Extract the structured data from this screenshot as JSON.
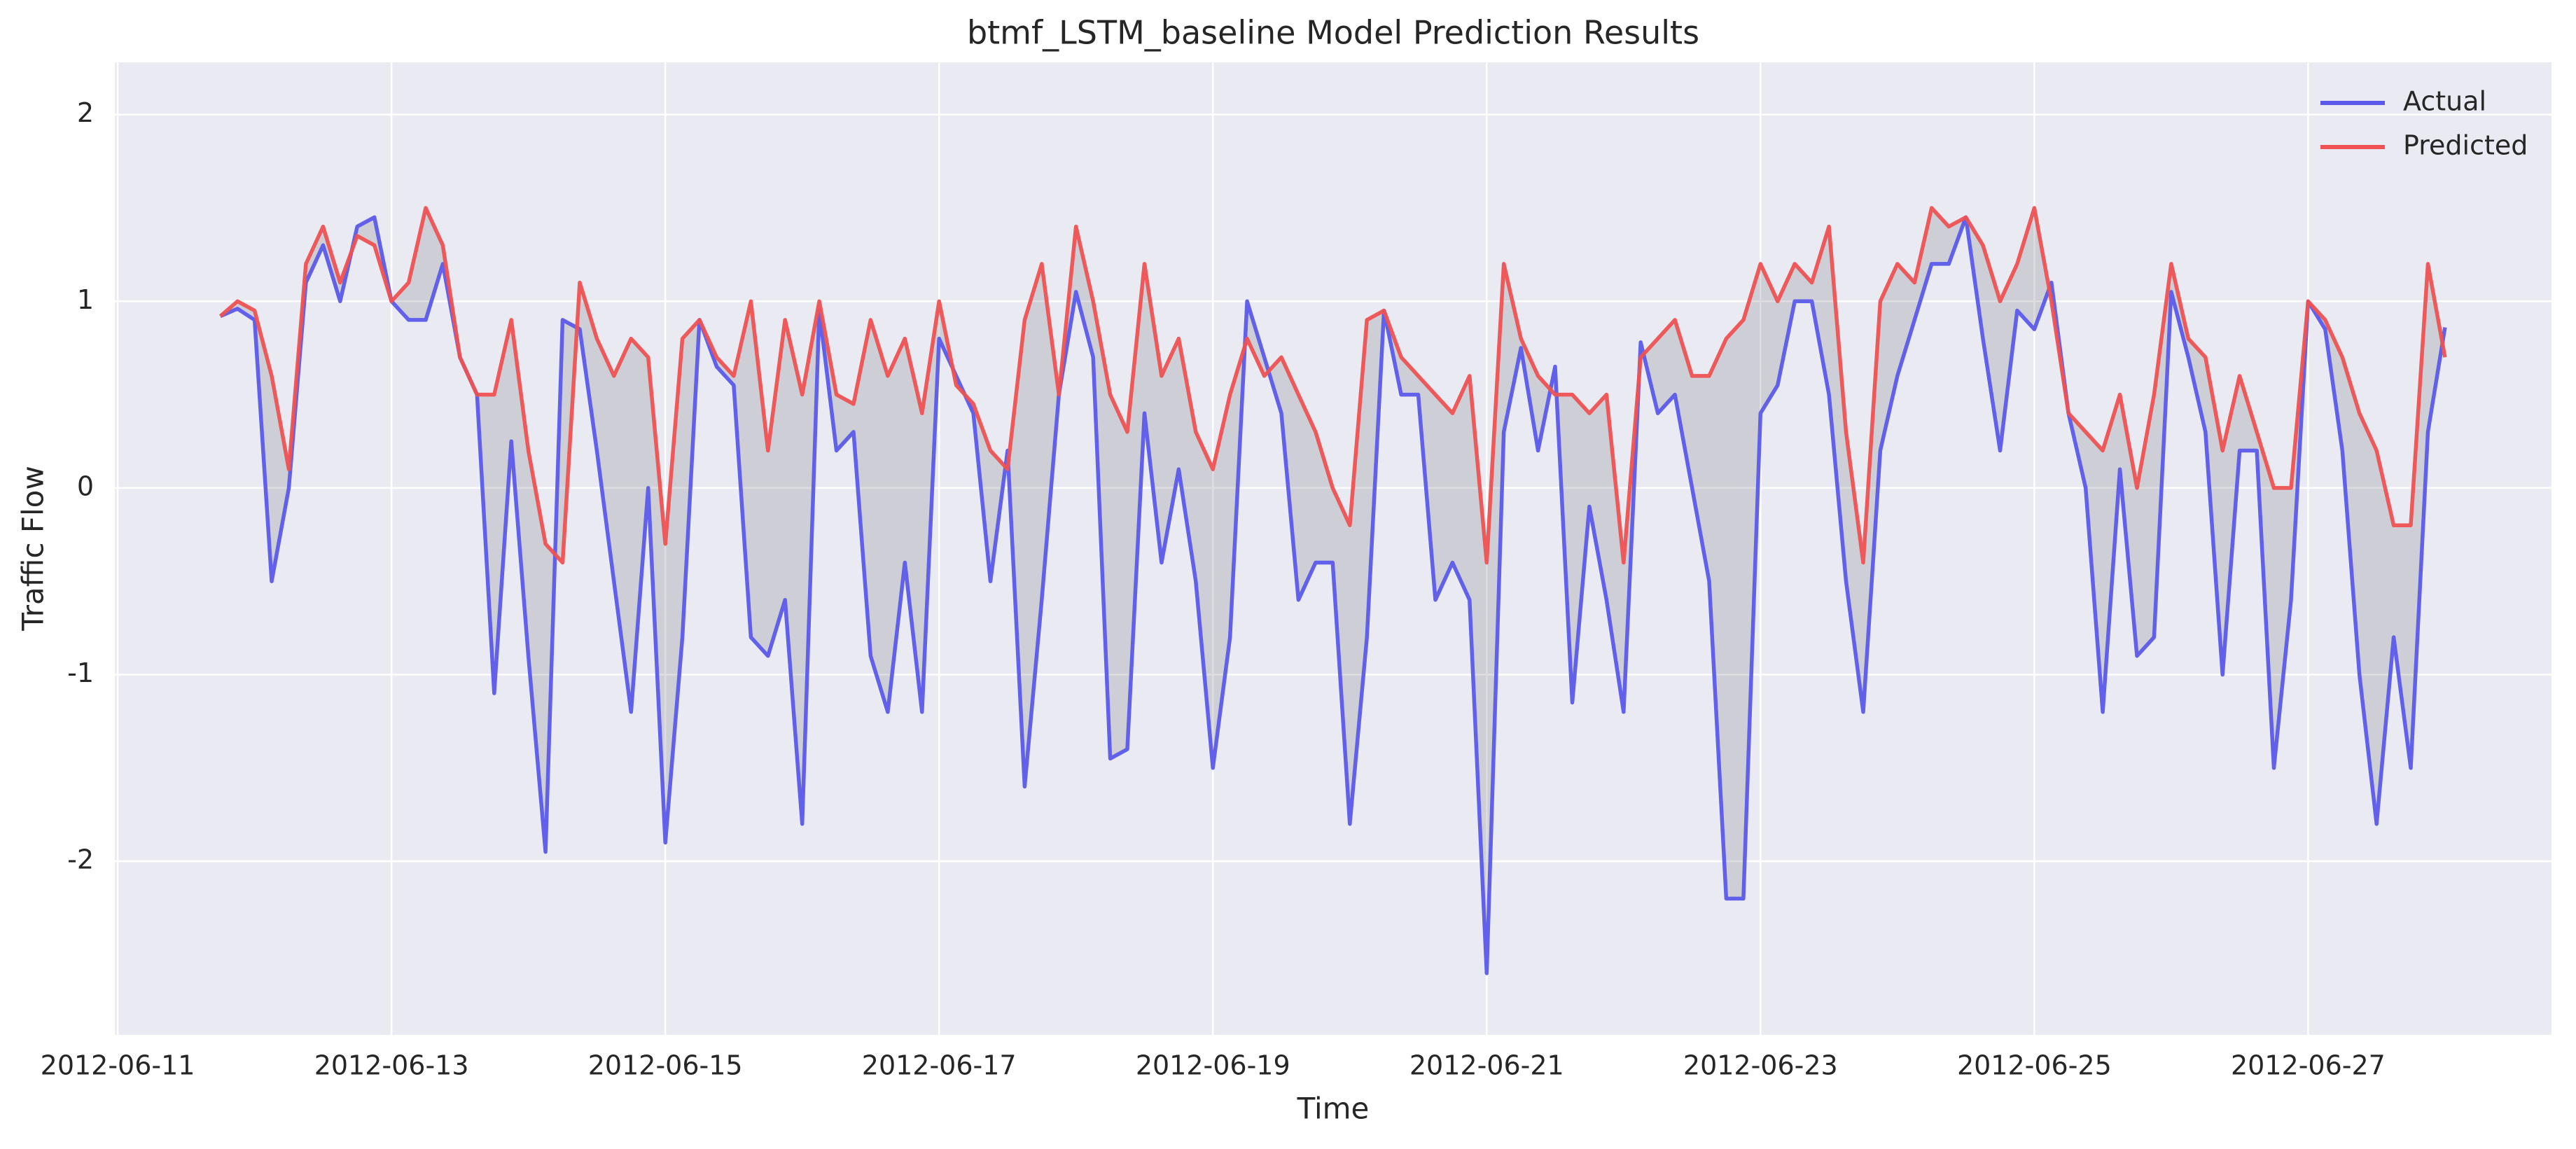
{
  "chart_data": {
    "type": "line",
    "title": "btmf_LSTM_baseline Model Prediction Results",
    "x_label": "Time",
    "y_label": "Traffic Flow",
    "grid": true,
    "legend": "upper right",
    "fill_between": true,
    "fill_color": "#8f8f99",
    "background": "#eaeaf2",
    "xlim": [
      "2012-06-10 23:30",
      "2012-06-28 18:40"
    ],
    "xticks": [
      "2012-06-11",
      "2012-06-13",
      "2012-06-15",
      "2012-06-17",
      "2012-06-19",
      "2012-06-21",
      "2012-06-23",
      "2012-06-25",
      "2012-06-27"
    ],
    "ylim": [
      -2.93,
      2.28
    ],
    "yticks": [
      -2,
      -1,
      0,
      1,
      2
    ],
    "x": [
      "2012-06-11 18:00",
      "2012-06-11 21:00",
      "2012-06-12 00:00",
      "2012-06-12 03:00",
      "2012-06-12 06:00",
      "2012-06-12 09:00",
      "2012-06-12 12:00",
      "2012-06-12 15:00",
      "2012-06-12 18:00",
      "2012-06-12 21:00",
      "2012-06-13 00:00",
      "2012-06-13 03:00",
      "2012-06-13 06:00",
      "2012-06-13 09:00",
      "2012-06-13 12:00",
      "2012-06-13 15:00",
      "2012-06-13 18:00",
      "2012-06-13 21:00",
      "2012-06-14 00:00",
      "2012-06-14 03:00",
      "2012-06-14 06:00",
      "2012-06-14 09:00",
      "2012-06-14 12:00",
      "2012-06-14 15:00",
      "2012-06-14 18:00",
      "2012-06-14 21:00",
      "2012-06-15 00:00",
      "2012-06-15 03:00",
      "2012-06-15 06:00",
      "2012-06-15 09:00",
      "2012-06-15 12:00",
      "2012-06-15 15:00",
      "2012-06-15 18:00",
      "2012-06-15 21:00",
      "2012-06-16 00:00",
      "2012-06-16 03:00",
      "2012-06-16 06:00",
      "2012-06-16 09:00",
      "2012-06-16 12:00",
      "2012-06-16 15:00",
      "2012-06-16 18:00",
      "2012-06-16 21:00",
      "2012-06-17 00:00",
      "2012-06-17 03:00",
      "2012-06-17 06:00",
      "2012-06-17 09:00",
      "2012-06-17 12:00",
      "2012-06-17 15:00",
      "2012-06-17 18:00",
      "2012-06-17 21:00",
      "2012-06-18 00:00",
      "2012-06-18 03:00",
      "2012-06-18 06:00",
      "2012-06-18 09:00",
      "2012-06-18 12:00",
      "2012-06-18 15:00",
      "2012-06-18 18:00",
      "2012-06-18 21:00",
      "2012-06-19 00:00",
      "2012-06-19 03:00",
      "2012-06-19 06:00",
      "2012-06-19 09:00",
      "2012-06-19 12:00",
      "2012-06-19 15:00",
      "2012-06-19 18:00",
      "2012-06-19 21:00",
      "2012-06-20 00:00",
      "2012-06-20 03:00",
      "2012-06-20 06:00",
      "2012-06-20 09:00",
      "2012-06-20 12:00",
      "2012-06-20 15:00",
      "2012-06-20 18:00",
      "2012-06-20 21:00",
      "2012-06-21 00:00",
      "2012-06-21 03:00",
      "2012-06-21 06:00",
      "2012-06-21 09:00",
      "2012-06-21 12:00",
      "2012-06-21 15:00",
      "2012-06-21 18:00",
      "2012-06-21 21:00",
      "2012-06-22 00:00",
      "2012-06-22 03:00",
      "2012-06-22 06:00",
      "2012-06-22 09:00",
      "2012-06-22 12:00",
      "2012-06-22 15:00",
      "2012-06-22 18:00",
      "2012-06-22 21:00",
      "2012-06-23 00:00",
      "2012-06-23 03:00",
      "2012-06-23 06:00",
      "2012-06-23 09:00",
      "2012-06-23 12:00",
      "2012-06-23 15:00",
      "2012-06-23 18:00",
      "2012-06-23 21:00",
      "2012-06-24 00:00",
      "2012-06-24 03:00",
      "2012-06-24 06:00",
      "2012-06-24 09:00",
      "2012-06-24 12:00",
      "2012-06-24 15:00",
      "2012-06-24 18:00",
      "2012-06-24 21:00",
      "2012-06-25 00:00",
      "2012-06-25 03:00",
      "2012-06-25 06:00",
      "2012-06-25 09:00",
      "2012-06-25 12:00",
      "2012-06-25 15:00",
      "2012-06-25 18:00",
      "2012-06-25 21:00",
      "2012-06-26 00:00",
      "2012-06-26 03:00",
      "2012-06-26 06:00",
      "2012-06-26 09:00",
      "2012-06-26 12:00",
      "2012-06-26 15:00",
      "2012-06-26 18:00",
      "2012-06-26 21:00",
      "2012-06-27 00:00",
      "2012-06-27 03:00",
      "2012-06-27 06:00",
      "2012-06-27 09:00",
      "2012-06-27 12:00",
      "2012-06-27 15:00",
      "2012-06-27 18:00",
      "2012-06-27 21:00",
      "2012-06-28 00:00"
    ],
    "series": [
      {
        "name": "Actual",
        "color": "#5a5aea",
        "values": [
          0.92,
          0.96,
          0.9,
          -0.5,
          0.0,
          1.1,
          1.3,
          1.0,
          1.4,
          1.45,
          1.0,
          0.9,
          0.9,
          1.2,
          0.7,
          0.5,
          -1.1,
          0.25,
          -0.9,
          -1.95,
          0.9,
          0.85,
          0.2,
          -0.5,
          -1.2,
          0.0,
          -1.9,
          -0.8,
          0.9,
          0.65,
          0.55,
          -0.8,
          -0.9,
          -0.6,
          -1.8,
          0.95,
          0.2,
          0.3,
          -0.9,
          -1.2,
          -0.4,
          -1.2,
          0.8,
          0.6,
          0.4,
          -0.5,
          0.2,
          -1.6,
          -0.6,
          0.5,
          1.05,
          0.7,
          -1.45,
          -1.4,
          0.4,
          -0.4,
          0.1,
          -0.5,
          -1.5,
          -0.8,
          1.0,
          0.7,
          0.4,
          -0.6,
          -0.4,
          -0.4,
          -1.8,
          -0.8,
          0.95,
          0.5,
          0.5,
          -0.6,
          -0.4,
          -0.6,
          -2.6,
          0.3,
          0.75,
          0.2,
          0.65,
          -1.15,
          -0.1,
          -0.6,
          -1.2,
          0.78,
          0.4,
          0.5,
          0.0,
          -0.5,
          -2.2,
          -2.2,
          0.4,
          0.55,
          1.0,
          1.0,
          0.5,
          -0.5,
          -1.2,
          0.2,
          0.6,
          0.9,
          1.2,
          1.2,
          1.45,
          0.8,
          0.2,
          0.95,
          0.85,
          1.1,
          0.4,
          0.0,
          -1.2,
          0.1,
          -0.9,
          -0.8,
          1.05,
          0.7,
          0.3,
          -1.0,
          0.2,
          0.2,
          -1.5,
          -0.6,
          1.0,
          0.85,
          0.2,
          -1.0,
          -1.8,
          -0.8,
          -1.5,
          0.3,
          0.86
        ]
      },
      {
        "name": "Predicted",
        "color": "#ee5252",
        "values": [
          0.92,
          1.0,
          0.95,
          0.6,
          0.1,
          1.2,
          1.4,
          1.1,
          1.35,
          1.3,
          1.0,
          1.1,
          1.5,
          1.3,
          0.7,
          0.5,
          0.5,
          0.9,
          0.2,
          -0.3,
          -0.4,
          1.1,
          0.8,
          0.6,
          0.8,
          0.7,
          -0.3,
          0.8,
          0.9,
          0.7,
          0.6,
          1.0,
          0.2,
          0.9,
          0.5,
          1.0,
          0.5,
          0.45,
          0.9,
          0.6,
          0.8,
          0.4,
          1.0,
          0.55,
          0.45,
          0.2,
          0.1,
          0.9,
          1.2,
          0.5,
          1.4,
          1.0,
          0.5,
          0.3,
          1.2,
          0.6,
          0.8,
          0.3,
          0.1,
          0.5,
          0.8,
          0.6,
          0.7,
          0.5,
          0.3,
          0.0,
          -0.2,
          0.9,
          0.95,
          0.7,
          0.6,
          0.5,
          0.4,
          0.6,
          -0.4,
          1.2,
          0.8,
          0.6,
          0.5,
          0.5,
          0.4,
          0.5,
          -0.4,
          0.7,
          0.8,
          0.9,
          0.6,
          0.6,
          0.8,
          0.9,
          1.2,
          1.0,
          1.2,
          1.1,
          1.4,
          0.3,
          -0.4,
          1.0,
          1.2,
          1.1,
          1.5,
          1.4,
          1.45,
          1.3,
          1.0,
          1.2,
          1.5,
          1.0,
          0.4,
          0.3,
          0.2,
          0.5,
          0.0,
          0.5,
          1.2,
          0.8,
          0.7,
          0.2,
          0.6,
          0.3,
          0.0,
          0.0,
          1.0,
          0.9,
          0.7,
          0.4,
          0.2,
          -0.2,
          -0.2,
          1.2,
          0.7
        ]
      }
    ]
  }
}
